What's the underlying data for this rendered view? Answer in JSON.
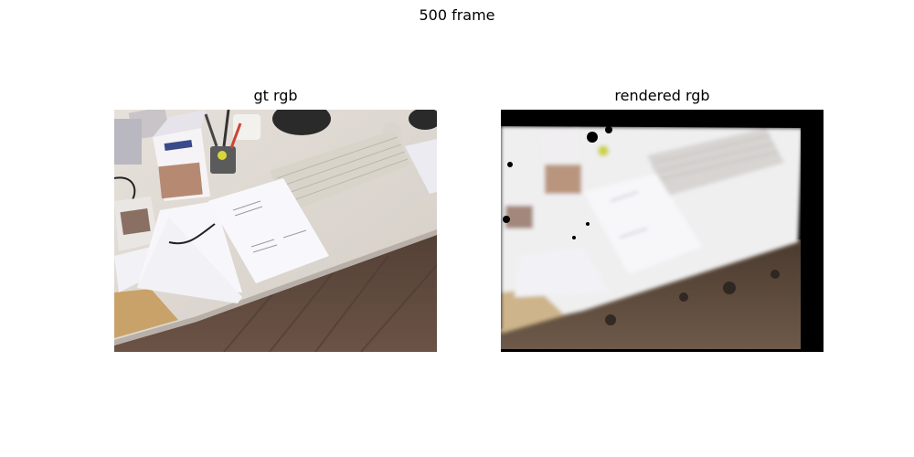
{
  "figure": {
    "suptitle": "500 frame"
  },
  "panels": [
    {
      "title": "gt rgb"
    },
    {
      "title": "rendered rgb"
    }
  ]
}
